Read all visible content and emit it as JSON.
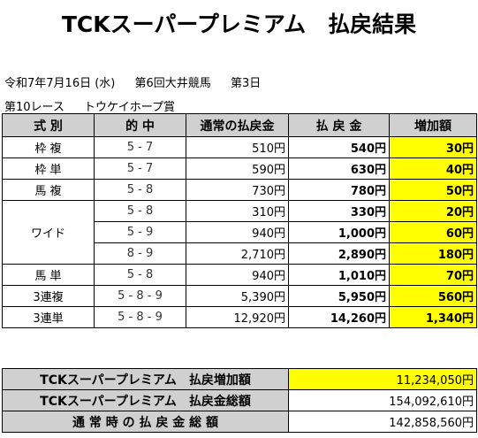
{
  "title": "TCKスーパープレミアム　払戻結果",
  "meta": {
    "date": "令和7年7月16日 (水)",
    "meeting": "第6回大井競馬",
    "day": "第3日",
    "race": "第10レース",
    "race_name": "トウケイホープ賞"
  },
  "headers": [
    "式 別",
    "的 中",
    "通常の払戻金",
    "払 戻 金",
    "増加額"
  ],
  "rows": [
    {
      "type": "枠 複",
      "combo": "5 - 7",
      "normal": "510円",
      "premium": "540円",
      "add": "30円"
    },
    {
      "type": "枠 単",
      "combo": "5 - 7",
      "normal": "590円",
      "premium": "630円",
      "add": "40円"
    },
    {
      "type": "馬 複",
      "combo": "5 - 8",
      "normal": "730円",
      "premium": "780円",
      "add": "50円"
    },
    {
      "type": "ワイド",
      "combo": "5 - 8",
      "normal": "310円",
      "premium": "330円",
      "add": "20円"
    },
    {
      "type": "",
      "combo": "5 - 9",
      "normal": "940円",
      "premium": "1,000円",
      "add": "60円"
    },
    {
      "type": "",
      "combo": "8 - 9",
      "normal": "2,710円",
      "premium": "2,890円",
      "add": "180円"
    },
    {
      "type": "馬 単",
      "combo": "5 - 8",
      "normal": "940円",
      "premium": "1,010円",
      "add": "70円"
    },
    {
      "type": "3連複",
      "combo": "5 - 8 - 9",
      "normal": "5,390円",
      "premium": "5,950円",
      "add": "560円"
    },
    {
      "type": "3連単",
      "combo": "5 - 8 - 9",
      "normal": "12,920円",
      "premium": "14,260円",
      "add": "1,340円"
    }
  ],
  "summary": [
    {
      "label": "TCKスーパープレミアム　払戻増加額",
      "value": "11,234,050円",
      "highlight": true
    },
    {
      "label": "TCKスーパープレミアム　払戻金総額",
      "value": "154,092,610円",
      "highlight": false
    },
    {
      "label": "通 常 時 の 払 戻 金 総 額",
      "value": "142,858,560円",
      "highlight": false
    }
  ],
  "colors": {
    "header_bg": "#d0d0d0",
    "highlight": "#ffff00"
  }
}
